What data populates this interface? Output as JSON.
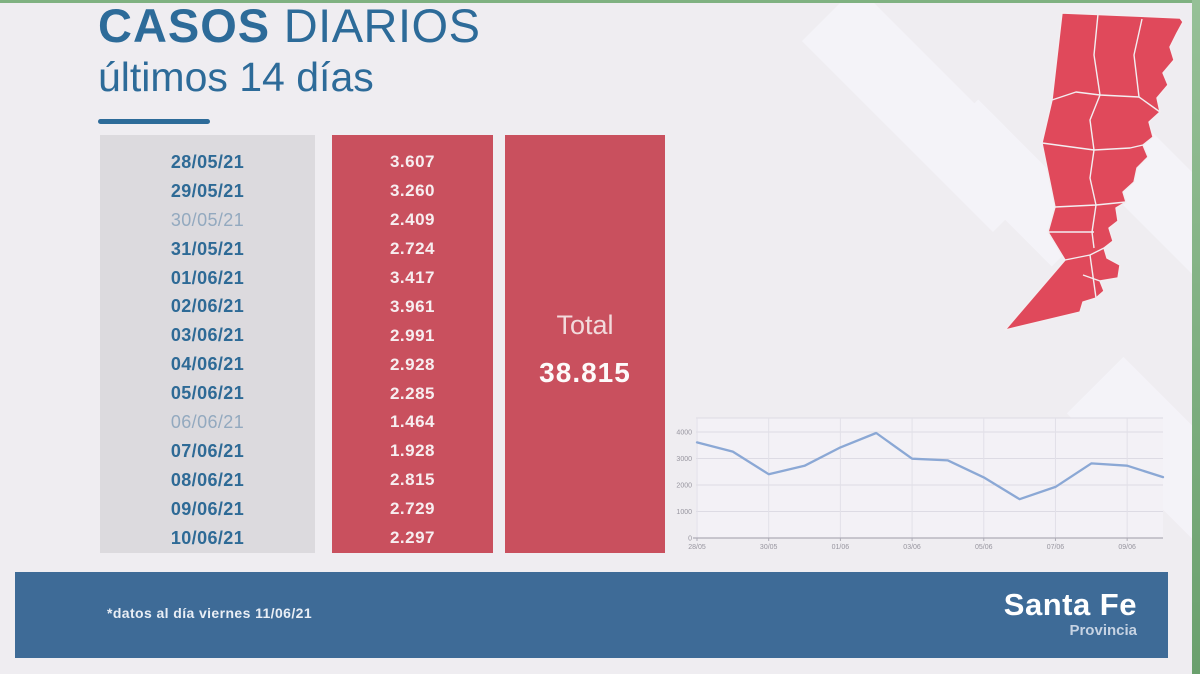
{
  "header": {
    "title_bold": "CASOS",
    "title_regular": " DIARIOS",
    "subtitle": "últimos 14 días"
  },
  "table": {
    "rows": [
      {
        "date": "28/05/21",
        "value": "3.607",
        "muted": false
      },
      {
        "date": "29/05/21",
        "value": "3.260",
        "muted": false
      },
      {
        "date": "30/05/21",
        "value": "2.409",
        "muted": true
      },
      {
        "date": "31/05/21",
        "value": "2.724",
        "muted": false
      },
      {
        "date": "01/06/21",
        "value": "3.417",
        "muted": false
      },
      {
        "date": "02/06/21",
        "value": "3.961",
        "muted": false
      },
      {
        "date": "03/06/21",
        "value": "2.991",
        "muted": false
      },
      {
        "date": "04/06/21",
        "value": "2.928",
        "muted": false
      },
      {
        "date": "05/06/21",
        "value": "2.285",
        "muted": false
      },
      {
        "date": "06/06/21",
        "value": "1.464",
        "muted": true
      },
      {
        "date": "07/06/21",
        "value": "1.928",
        "muted": false
      },
      {
        "date": "08/06/21",
        "value": "2.815",
        "muted": false
      },
      {
        "date": "09/06/21",
        "value": "2.729",
        "muted": false
      },
      {
        "date": "10/06/21",
        "value": "2.297",
        "muted": false
      }
    ]
  },
  "total": {
    "label": "Total",
    "value": "38.815"
  },
  "chart_data": {
    "type": "line",
    "title": "",
    "x": [
      "28/05",
      "29/05",
      "30/05",
      "31/05",
      "01/06",
      "02/06",
      "03/06",
      "04/06",
      "05/06",
      "06/06",
      "07/06",
      "08/06",
      "09/06",
      "10/06"
    ],
    "values": [
      3607,
      3260,
      2409,
      2724,
      3417,
      3961,
      2991,
      2928,
      2285,
      1464,
      1928,
      2815,
      2729,
      2297
    ],
    "x_tick_labels": [
      "28/05",
      "30/05",
      "01/06",
      "03/06",
      "05/06",
      "07/06",
      "09/06"
    ],
    "y_tick_labels": [
      "0",
      "1000",
      "2000",
      "3000",
      "4000"
    ],
    "ylim": [
      0,
      4500
    ],
    "grid": true,
    "legend": "none"
  },
  "map": {
    "region": "Santa Fe province departments (all red)"
  },
  "footer": {
    "note": "*datos al día viernes 11/06/21",
    "brand_name": "Santa Fe",
    "brand_sub": "Provincia"
  },
  "colors": {
    "page_bg": "#efedf1",
    "title_blue": "#2d6b99",
    "date_blue": "#2e6a96",
    "date_dim": "#93a9bf",
    "panel_grey": "#dcdade",
    "panel_red": "#c9505e",
    "map_red": "#e0495b",
    "footer_blue": "#3e6b97",
    "chart_line": "#8ba8d5"
  }
}
